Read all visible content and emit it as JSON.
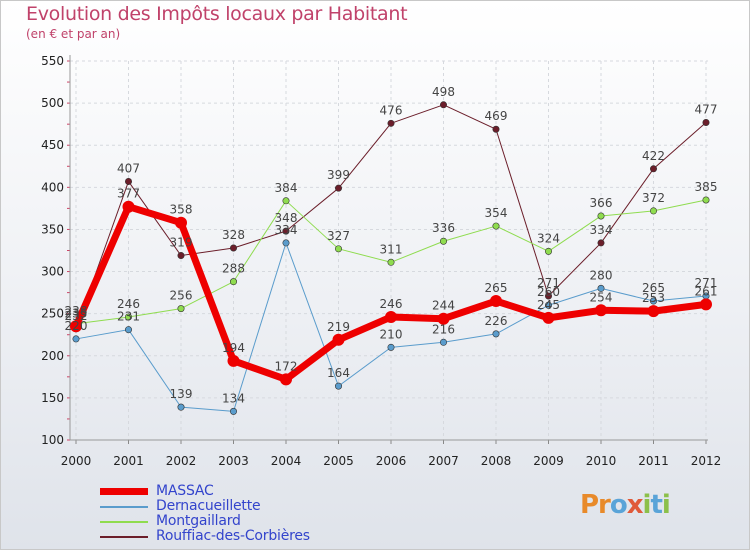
{
  "title": "Evolution des Impôts locaux par Habitant",
  "subtitle": "(en € et par an)",
  "logo": {
    "text": "Proxiti",
    "colors": [
      "#e88a2a",
      "#5aa4d8",
      "#8cc04a",
      "#e05a3a"
    ]
  },
  "chart_data": {
    "type": "line",
    "x": [
      "2000",
      "2001",
      "2002",
      "2003",
      "2004",
      "2005",
      "2006",
      "2007",
      "2008",
      "2009",
      "2010",
      "2011",
      "2012"
    ],
    "ylim": [
      100,
      550
    ],
    "yticks": [
      "100",
      "150",
      "200",
      "250",
      "300",
      "350",
      "400",
      "450",
      "500",
      "550"
    ],
    "grid": true,
    "series": [
      {
        "name": "Rouffiac-des-Corbières",
        "color": "#6b1e2a",
        "width": 1,
        "values": [
          232,
          407,
          319,
          328,
          348,
          399,
          476,
          498,
          469,
          271,
          334,
          422,
          477
        ],
        "labels": [
          "232",
          "407",
          "319",
          "328",
          "348",
          "399",
          "476",
          "498",
          "469",
          "271",
          "334",
          "422",
          "477"
        ]
      },
      {
        "name": "Montgaillard",
        "color": "#8fdc4f",
        "width": 1,
        "values": [
          238,
          246,
          256,
          288,
          384,
          327,
          311,
          336,
          354,
          324,
          366,
          372,
          385
        ],
        "labels": [
          "238",
          "246",
          "256",
          "288",
          "384",
          "327",
          "311",
          "336",
          "354",
          "324",
          "366",
          "372",
          "385"
        ]
      },
      {
        "name": "Dernacueillette",
        "color": "#5a9ccc",
        "width": 1,
        "values": [
          220,
          231,
          139,
          134,
          334,
          164,
          210,
          216,
          226,
          260,
          280,
          265,
          271
        ],
        "labels": [
          "220",
          "231",
          "139",
          "134",
          "334",
          "164",
          "210",
          "216",
          "226",
          "260",
          "280",
          "265",
          "271"
        ]
      },
      {
        "name": "MASSAC",
        "color": "#ee0000",
        "width": 7,
        "values": [
          235,
          377,
          358,
          194,
          172,
          219,
          246,
          244,
          265,
          245,
          254,
          253,
          261
        ],
        "labels": [
          "235",
          "377",
          "358",
          "194",
          "172",
          "219",
          "246",
          "244",
          "265",
          "245",
          "254",
          "253",
          "261"
        ]
      }
    ],
    "legend": [
      "MASSAC",
      "Dernacueillette",
      "Montgaillard",
      "Rouffiac-des-Corbières"
    ]
  }
}
